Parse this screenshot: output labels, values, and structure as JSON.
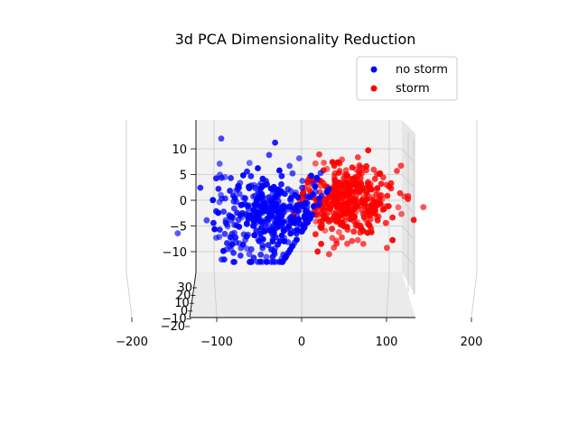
{
  "chart_data": {
    "type": "scatter",
    "projection": "3d",
    "title": "3d PCA Dimensionality Reduction",
    "legend_position": "top-right",
    "grid": true,
    "xlim": [
      -230,
      240
    ],
    "ylim": [
      -20,
      30
    ],
    "zlim": [
      -13,
      14
    ],
    "x_ticks": [
      -200,
      -100,
      0,
      100,
      200
    ],
    "y_ticks": [
      -20,
      -10,
      0,
      10,
      20,
      30
    ],
    "z_ticks": [
      -10,
      -5,
      0,
      5,
      10
    ],
    "x_tick_labels": [
      "−200",
      "−100",
      "0",
      "100",
      "200"
    ],
    "y_tick_labels": [
      "−20",
      "−10",
      "0",
      "10",
      "20",
      "30"
    ],
    "z_tick_labels": [
      "−10",
      "−5",
      "0",
      "5",
      "10"
    ],
    "series": [
      {
        "name": "no storm",
        "color": "#0000ff",
        "cluster": {
          "x_mean": -60,
          "x_sd": 55,
          "z_mean": -3,
          "z_sd": 4.5,
          "count": 420
        }
      },
      {
        "name": "storm",
        "color": "#ff0000",
        "cluster": {
          "x_mean": 80,
          "x_sd": 45,
          "z_mean": 0,
          "z_sd": 3.5,
          "count": 420
        }
      }
    ]
  }
}
